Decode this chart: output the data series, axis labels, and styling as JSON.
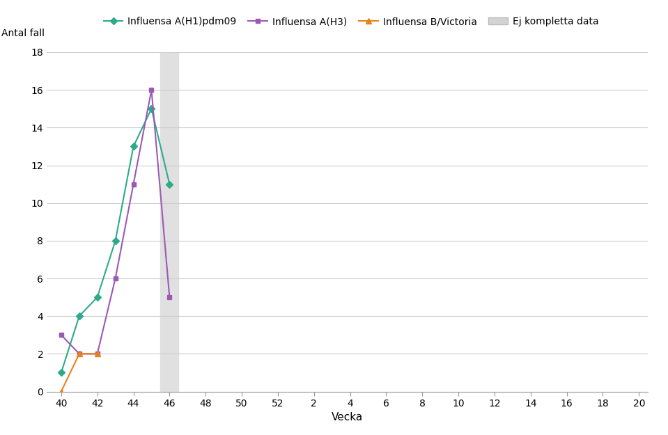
{
  "title": "",
  "ylabel": "Antal fall",
  "xlabel": "Vecka",
  "x_tick_labels": [
    "40",
    "42",
    "44",
    "46",
    "48",
    "50",
    "52",
    "2",
    "4",
    "6",
    "8",
    "10",
    "12",
    "14",
    "16",
    "18",
    "20"
  ],
  "x_tick_positions": [
    0,
    2,
    4,
    6,
    8,
    10,
    12,
    14,
    16,
    18,
    20,
    22,
    24,
    26,
    28,
    30,
    32
  ],
  "ylim": [
    0,
    18
  ],
  "yticks": [
    0,
    2,
    4,
    6,
    8,
    10,
    12,
    14,
    16,
    18
  ],
  "shade_xmin": 5.5,
  "shade_xmax": 6.5,
  "series": [
    {
      "label": "Influensa A(H1)pdm09",
      "color": "#2daa8a",
      "marker": "D",
      "markersize": 5,
      "x": [
        0,
        1,
        2,
        3,
        4,
        5,
        6
      ],
      "y": [
        1,
        4,
        5,
        8,
        13,
        15,
        11
      ]
    },
    {
      "label": "Influensa A(H3)",
      "color": "#9b59b6",
      "marker": "s",
      "markersize": 5,
      "x": [
        0,
        1,
        2,
        3,
        4,
        5,
        6
      ],
      "y": [
        3,
        2,
        2,
        6,
        11,
        16,
        5
      ]
    },
    {
      "label": "Influensa B/Victoria",
      "color": "#e8821a",
      "marker": "^",
      "markersize": 6,
      "x": [
        0,
        1,
        2
      ],
      "y": [
        0,
        2,
        2
      ]
    }
  ],
  "legend_patch_color": "#d3d3d3",
  "legend_patch_label": "Ej kompletta data",
  "background_color": "#ffffff",
  "grid_color": "#cccccc"
}
